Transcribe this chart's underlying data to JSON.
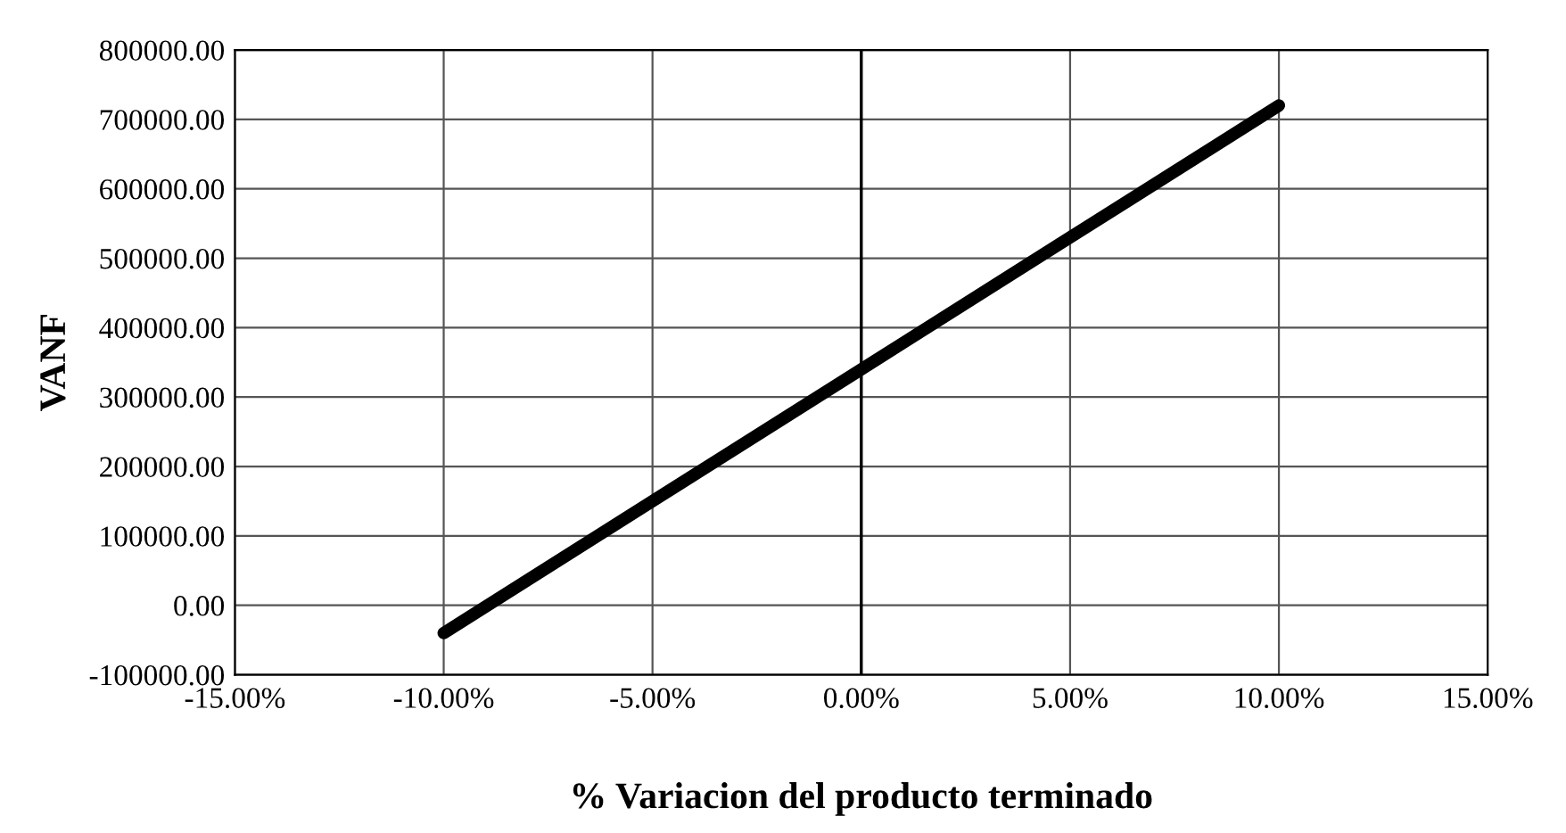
{
  "chart_data": {
    "type": "line",
    "xlabel": "% Variacion del producto terminado",
    "ylabel": "VANF",
    "x": [
      -10,
      -5,
      0,
      5,
      10
    ],
    "series": [
      {
        "color": "#000000",
        "values": [
          -40000,
          150000,
          340000,
          530000,
          720000
        ]
      }
    ],
    "xlim": [
      -15,
      15
    ],
    "ylim": [
      -100000,
      800000
    ],
    "xticks": [
      {
        "value": -15,
        "label": "-15.00%"
      },
      {
        "value": -10,
        "label": "-10.00%"
      },
      {
        "value": -5,
        "label": "-5.00%"
      },
      {
        "value": 0,
        "label": "0.00%"
      },
      {
        "value": 5,
        "label": "5.00%"
      },
      {
        "value": 10,
        "label": "10.00%"
      },
      {
        "value": 15,
        "label": "15.00%"
      }
    ],
    "yticks": [
      {
        "value": -100000,
        "label": "-100000.00"
      },
      {
        "value": 0,
        "label": "0.00"
      },
      {
        "value": 100000,
        "label": "100000.00"
      },
      {
        "value": 200000,
        "label": "200000.00"
      },
      {
        "value": 300000,
        "label": "300000.00"
      },
      {
        "value": 400000,
        "label": "400000.00"
      },
      {
        "value": 500000,
        "label": "500000.00"
      },
      {
        "value": 600000,
        "label": "600000.00"
      },
      {
        "value": 700000,
        "label": "700000.00"
      },
      {
        "value": 800000,
        "label": "800000.00"
      }
    ],
    "grid": true,
    "marker": "none",
    "line_style": "solid",
    "legend": false
  }
}
